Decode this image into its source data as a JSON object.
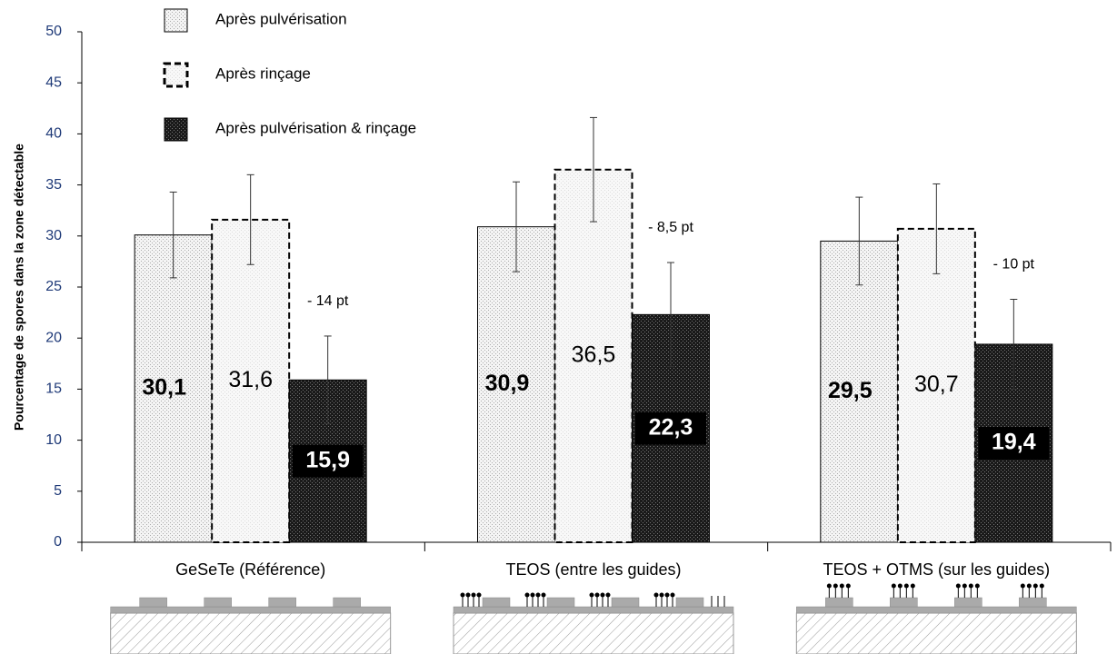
{
  "chart_data": {
    "type": "bar",
    "y_label": "Pourcentage de spores  dans la zone détectable",
    "categories": [
      "GeSeTe (Référence)",
      "TEOS (entre les guides)",
      "TEOS + OTMS (sur les guides)"
    ],
    "series": [
      {
        "name": "Après pulvérisation",
        "color": "#f4f4f4",
        "values": [
          30.1,
          30.9,
          29.5
        ],
        "value_labels": [
          "30,1",
          "30,9",
          "29,5"
        ],
        "errors": [
          4.2,
          4.4,
          4.3
        ]
      },
      {
        "name": "Après rinçage",
        "color": "#f8f8f8",
        "line_style": "dashed",
        "values": [
          31.6,
          36.5,
          30.7
        ],
        "value_labels": [
          "31,6",
          "36,5",
          "30,7"
        ],
        "errors": [
          4.4,
          5.1,
          4.4
        ]
      },
      {
        "name": "Après pulvérisation & rinçage",
        "color": "#1a1a1a",
        "values": [
          15.9,
          22.3,
          19.4
        ],
        "value_labels": [
          "15,9",
          "22,3",
          "19,4"
        ],
        "errors": [
          4.3,
          5.1,
          4.4
        ]
      }
    ],
    "annotations": [
      "- 14 pt",
      "- 8,5 pt",
      "- 10 pt"
    ],
    "ylim": [
      0,
      50
    ],
    "yticks": [
      0,
      5,
      10,
      15,
      20,
      25,
      30,
      35,
      40,
      45,
      50
    ],
    "grid": false
  }
}
